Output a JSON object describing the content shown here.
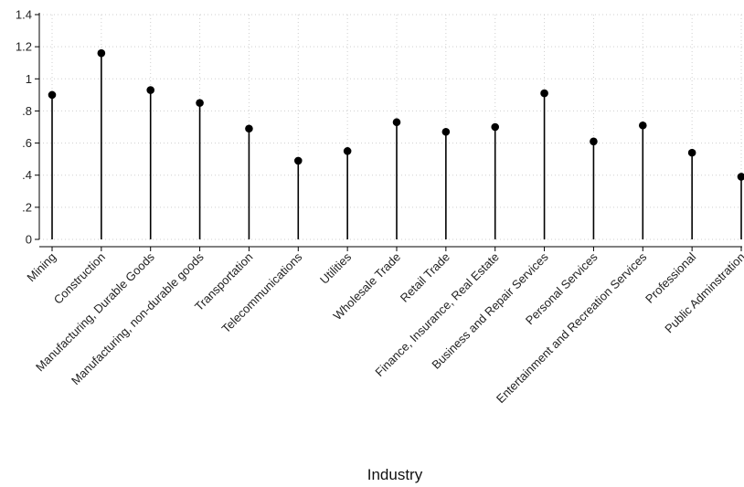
{
  "chart_data": {
    "type": "lollipop",
    "xlabel": "Industry",
    "ylabel": "",
    "ylim": [
      0,
      1.4
    ],
    "yticks": [
      0,
      0.2,
      0.4,
      0.6,
      0.8,
      1,
      1.2,
      1.4
    ],
    "ytick_labels": [
      "0",
      ".2",
      ".4",
      ".6",
      ".8",
      "1",
      "1.2",
      "1.4"
    ],
    "categories": [
      "Mining",
      "Construction",
      "Manufacturing, Durable Goods",
      "Manufacturing, non-durable goods",
      "Transportation",
      "Telecommunications",
      "Utilities",
      "Wholesale Trade",
      "Retail Trade",
      "Finance, Insurance, Real Estate",
      "Business and Repair Services",
      "Personal Services",
      "Entertainment and Recreation Services",
      "Professional",
      "Public Adminstration"
    ],
    "values": [
      0.9,
      1.16,
      0.93,
      0.85,
      0.69,
      0.49,
      0.55,
      0.73,
      0.67,
      0.7,
      0.91,
      0.61,
      0.71,
      0.54,
      0.39
    ],
    "grid": true,
    "colors": {
      "stem": "#000000",
      "marker": "#000000",
      "grid": "#cfcfcf",
      "axis": "#000000"
    }
  }
}
